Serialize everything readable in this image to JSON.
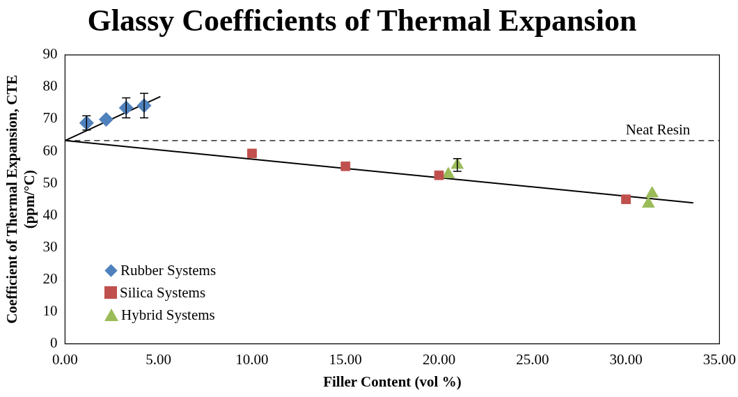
{
  "chart_data": {
    "type": "scatter",
    "title": "Glassy Coefficients of Thermal Expansion",
    "xlabel": "Filler Content (vol %)",
    "ylabel": "Coefficient of Thermal Expansion, CTE (ppm/°C)",
    "xlim": [
      0,
      35
    ],
    "xticks": [
      {
        "value": 0,
        "label": "0.00"
      },
      {
        "value": 5,
        "label": "5.00"
      },
      {
        "value": 10,
        "label": "10.00"
      },
      {
        "value": 15,
        "label": "15.00"
      },
      {
        "value": 20,
        "label": "20.00"
      },
      {
        "value": 25,
        "label": "25.00"
      },
      {
        "value": 30,
        "label": "30.00"
      },
      {
        "value": 35,
        "label": "35.00"
      }
    ],
    "ylim": [
      0,
      90
    ],
    "yticks": [
      0,
      10,
      20,
      30,
      40,
      50,
      60,
      70,
      80,
      90
    ],
    "grid": false,
    "legend": "bottom left",
    "ref_lines": [
      {
        "axis": "y",
        "value": 63.3,
        "label": "Neat Resin",
        "color": "#000000",
        "line_style": "dashed"
      }
    ],
    "series": [
      {
        "name": "Rubber Systems",
        "color": "#4f81bd",
        "marker": "diamond",
        "x": [
          1.15,
          2.2,
          3.27,
          4.23
        ],
        "values": [
          68.8,
          69.9,
          73.5,
          74.2
        ],
        "errors": [
          2.2,
          null,
          3.1,
          3.8
        ]
      },
      {
        "name": "Silica Systems",
        "color": "#c0504d",
        "marker": "square",
        "x": [
          10,
          15,
          20,
          30
        ],
        "values": [
          59.3,
          55.3,
          52.5,
          45.0
        ]
      },
      {
        "name": "Hybrid Systems",
        "color": "#9bbb59",
        "marker": "triangle",
        "x": [
          20.5,
          20.98,
          31.2,
          31.4
        ],
        "values": [
          52.8,
          55.7,
          43.6,
          46.8
        ],
        "errors": [
          null,
          2.0,
          null,
          null
        ]
      },
      {
        "type": "line",
        "color": "#000000",
        "marker": "none",
        "line_style": "solid",
        "x": [
          0,
          5.1
        ],
        "values": [
          63.3,
          77.0
        ]
      },
      {
        "type": "line",
        "color": "#000000",
        "marker": "none",
        "line_style": "solid",
        "x": [
          0,
          33.6
        ],
        "values": [
          63.3,
          43.9
        ]
      }
    ]
  }
}
